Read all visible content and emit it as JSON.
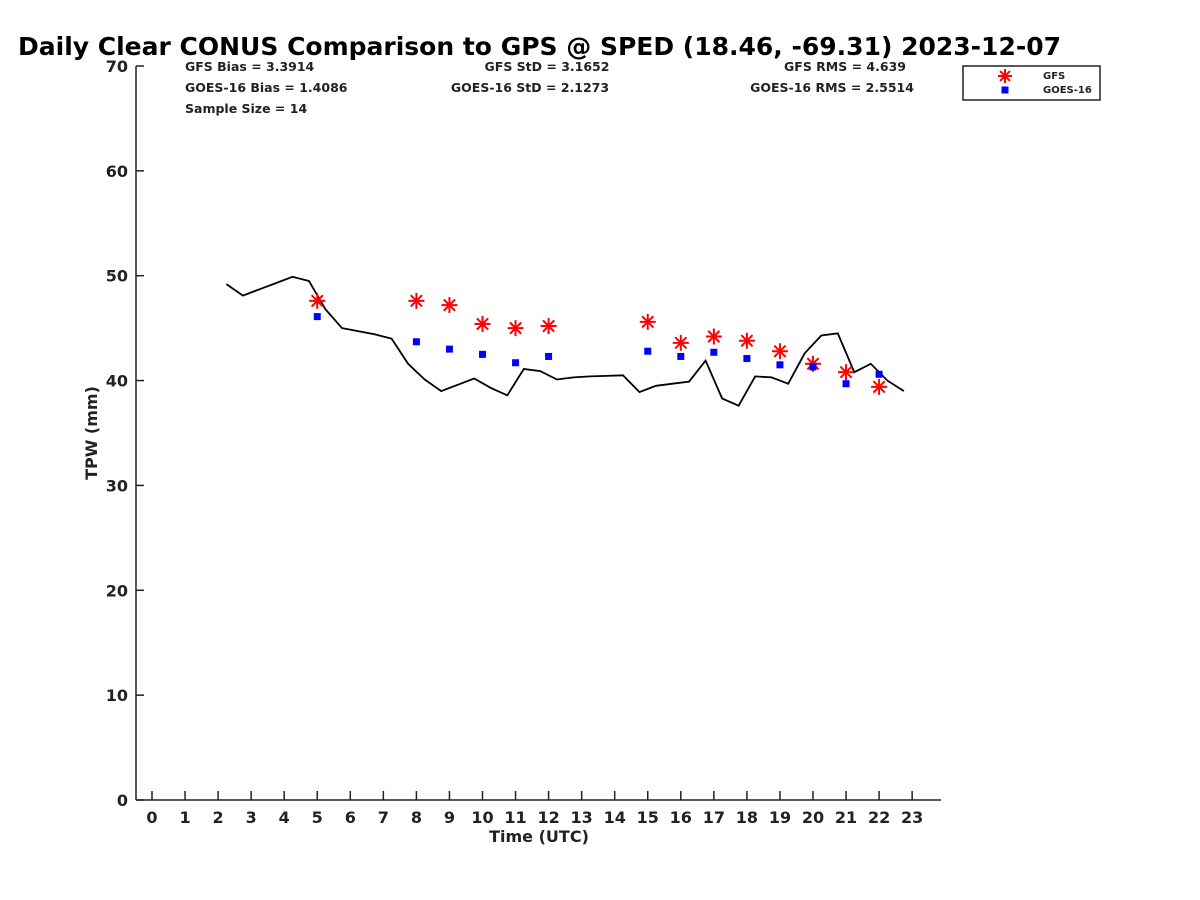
{
  "chart_data": {
    "type": "line",
    "title": "Daily Clear CONUS Comparison to GPS @ SPED (18.46, -69.31) 2023-12-07",
    "xlabel": "Time (UTC)",
    "ylabel": "TPW (mm)",
    "xlim": [
      -0.5,
      23.7
    ],
    "ylim": [
      0,
      70
    ],
    "xticks": [
      0,
      1,
      2,
      3,
      4,
      5,
      6,
      7,
      8,
      9,
      10,
      11,
      12,
      13,
      14,
      15,
      16,
      17,
      18,
      19,
      20,
      21,
      22,
      23
    ],
    "yticks": [
      0,
      10,
      20,
      30,
      40,
      50,
      60,
      70
    ],
    "grid": false,
    "legend": {
      "placement": "top-right",
      "entries": [
        "GFS",
        "GOES-16"
      ]
    },
    "stats": [
      "GFS Bias = 3.3914",
      "GFS StD = 3.1652",
      "GFS RMS = 4.639",
      "GOES-16 Bias = 1.4086",
      "GOES-16 StD = 2.1273",
      "GOES-16 RMS = 2.5514",
      "Sample Size = 14"
    ],
    "series": [
      {
        "mark": "line",
        "color": "#000000",
        "x": [
          2.25,
          2.75,
          3.25,
          3.75,
          4.25,
          4.75,
          5.25,
          5.75,
          6.25,
          6.75,
          7.25,
          7.75,
          8.25,
          8.75,
          9.25,
          9.75,
          10.25,
          10.75,
          11.25,
          11.75,
          12.25,
          12.75,
          13.25,
          13.75,
          14.25,
          14.75,
          15.25,
          15.75,
          16.25,
          16.75,
          17.25,
          17.75,
          18.25,
          18.75,
          19.25,
          19.75,
          20.25,
          20.75,
          21.25,
          21.75,
          22.25,
          22.75
        ],
        "y": [
          49.2,
          48.1,
          48.7,
          49.3,
          49.9,
          49.5,
          46.8,
          45.0,
          44.7,
          44.4,
          44.0,
          41.6,
          40.1,
          39.0,
          39.6,
          40.2,
          39.3,
          38.6,
          41.1,
          40.9,
          40.1,
          40.3,
          40.4,
          40.45,
          40.5,
          38.9,
          39.5,
          39.7,
          39.9,
          41.9,
          38.3,
          37.6,
          40.4,
          40.3,
          39.7,
          42.6,
          44.3,
          44.5,
          40.8,
          41.6,
          40.0,
          39.0
        ]
      },
      {
        "name": "GFS",
        "mark": "asterisk",
        "color": "#ff0000",
        "x": [
          5,
          8,
          9,
          10,
          11,
          12,
          15,
          16,
          17,
          18,
          19,
          20,
          21,
          22
        ],
        "y": [
          47.6,
          47.6,
          47.2,
          45.4,
          45.0,
          45.2,
          45.6,
          43.6,
          44.2,
          43.8,
          42.8,
          41.6,
          40.8,
          39.4
        ]
      },
      {
        "name": "GOES-16",
        "mark": "square",
        "color": "#0000ff",
        "x": [
          5,
          8,
          9,
          10,
          11,
          12,
          15,
          16,
          17,
          18,
          19,
          20,
          21,
          22
        ],
        "y": [
          46.1,
          43.7,
          43.0,
          42.5,
          41.7,
          42.3,
          42.8,
          42.3,
          42.7,
          42.1,
          41.5,
          41.3,
          39.7,
          40.6
        ]
      }
    ]
  }
}
